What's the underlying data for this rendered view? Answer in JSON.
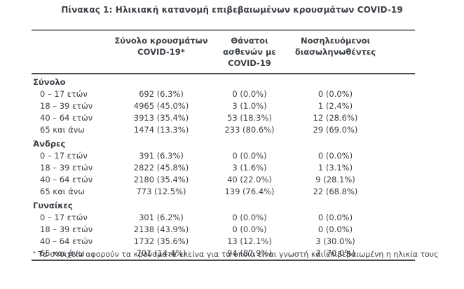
{
  "page": {
    "title": "Πίνακας 1: Ηλικιακή κατανομή επιβεβαιωμένων κρουσμάτων COVID-19",
    "footnote_marker": "*",
    "footnote_text": "Τα στοιχεία αφορούν τα κρούσματα εκείνα για τα οποία είναι γνωστή και επιβεβαιωμένη η ηλικία τους"
  },
  "colors": {
    "text": "#3b4046",
    "rule_top": "#8f9195",
    "rule_dark": "#4b4e53",
    "background": "#ffffff"
  },
  "table": {
    "headers": [
      {
        "line1": "Σύνολο κρουσμάτων",
        "line2": "COVID-19*"
      },
      {
        "line1": "Θάνατοι ασθενών με",
        "line2": "COVID-19"
      },
      {
        "line1": "Νοσηλευόμενοι",
        "line2": "διασωληνωθέντες"
      }
    ],
    "sections": [
      {
        "label": "Σύνολο",
        "rows": [
          {
            "age": "0 – 17 ετών",
            "cases": "692 (6.3%)",
            "deaths": "0 (0.0%)",
            "intubated": "0 (0.0%)"
          },
          {
            "age": "18 – 39 ετών",
            "cases": "4965 (45.0%)",
            "deaths": "3 (1.0%)",
            "intubated": "1 (2.4%)"
          },
          {
            "age": "40 – 64 ετών",
            "cases": "3913 (35.4%)",
            "deaths": "53 (18.3%)",
            "intubated": "12 (28.6%)"
          },
          {
            "age": "65 και άνω",
            "cases": "1474 (13.3%)",
            "deaths": "233 (80.6%)",
            "intubated": "29 (69.0%)"
          }
        ]
      },
      {
        "label": "Άνδρες",
        "rows": [
          {
            "age": "0 – 17 ετών",
            "cases": "391 (6.3%)",
            "deaths": "0 (0.0%)",
            "intubated": "0 (0.0%)"
          },
          {
            "age": "18 – 39 ετών",
            "cases": "2822 (45.8%)",
            "deaths": "3 (1.6%)",
            "intubated": "1 (3.1%)"
          },
          {
            "age": "40 – 64 ετών",
            "cases": "2180 (35.4%)",
            "deaths": "40 (22.0%)",
            "intubated": "9 (28.1%)"
          },
          {
            "age": "65 και άνω",
            "cases": "773 (12.5%)",
            "deaths": "139 (76.4%)",
            "intubated": "22 (68.8%)"
          }
        ]
      },
      {
        "label": "Γυναίκες",
        "rows": [
          {
            "age": "0 – 17 ετών",
            "cases": "301 (6.2%)",
            "deaths": "0 (0.0%)",
            "intubated": "0 (0.0%)"
          },
          {
            "age": "18 – 39 ετών",
            "cases": "2138 (43.9%)",
            "deaths": "0 (0.0%)",
            "intubated": "0 (0.0%)"
          },
          {
            "age": "40 – 64 ετών",
            "cases": "1732 (35.6%)",
            "deaths": "13 (12.1%)",
            "intubated": "3 (30.0%)"
          },
          {
            "age": "65 και άνω",
            "cases": "701 (14.4%)",
            "deaths": "94 (87.9%)",
            "intubated": "7 (70.0%)"
          }
        ]
      }
    ]
  }
}
